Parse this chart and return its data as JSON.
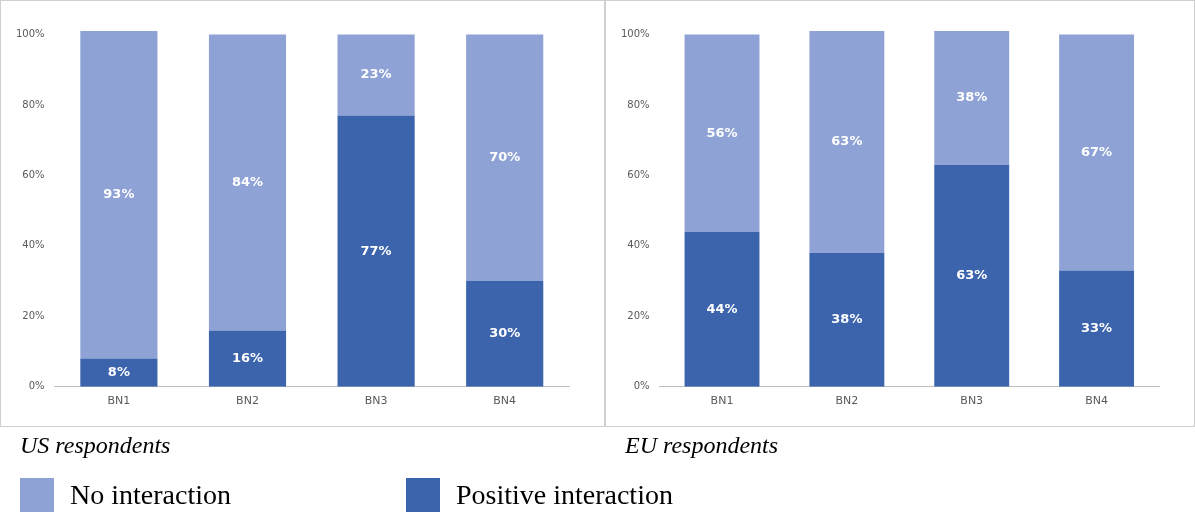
{
  "chart_data": [
    {
      "type": "bar",
      "title": "US respondents",
      "stacked": true,
      "categories": [
        "BN1",
        "BN2",
        "BN3",
        "BN4"
      ],
      "series": [
        {
          "name": "Positive interaction",
          "color": "#3c64ad",
          "values": [
            8,
            16,
            77,
            30
          ],
          "value_labels": [
            "8%",
            "16%",
            "77%",
            "30%"
          ]
        },
        {
          "name": "No interaction",
          "color": "#8fa2d5",
          "values": [
            93,
            84,
            23,
            70
          ],
          "value_labels": [
            "93%",
            "84%",
            "23%",
            "70%"
          ]
        }
      ],
      "ylim": [
        0,
        101
      ],
      "yticks": [
        {
          "value": 0,
          "label": "0%"
        },
        {
          "value": 20,
          "label": "20%"
        },
        {
          "value": 40,
          "label": "40%"
        },
        {
          "value": 60,
          "label": "60%"
        },
        {
          "value": 80,
          "label": "80%"
        },
        {
          "value": 100,
          "label": "100%"
        }
      ],
      "grid": false,
      "legend": "bottom"
    },
    {
      "type": "bar",
      "title": "EU respondents",
      "stacked": true,
      "categories": [
        "BN1",
        "BN2",
        "BN3",
        "BN4"
      ],
      "series": [
        {
          "color": "#3c64ad",
          "values": [
            44,
            38,
            63,
            33
          ],
          "value_labels": [
            "44%",
            "38%",
            "63%",
            "33%"
          ]
        },
        {
          "color": "#8fa2d5",
          "values": [
            56,
            63,
            38,
            67
          ],
          "value_labels": [
            "56%",
            "63%",
            "38%",
            "67%"
          ]
        }
      ],
      "ylim": [
        0,
        101
      ],
      "yticks": [
        {
          "value": 0,
          "label": "0%"
        },
        {
          "value": 20,
          "label": "20%"
        },
        {
          "value": 40,
          "label": "40%"
        },
        {
          "value": 60,
          "label": "60%"
        },
        {
          "value": 80,
          "label": "80%"
        },
        {
          "value": 100,
          "label": "100%"
        }
      ],
      "grid": false
    }
  ]
}
